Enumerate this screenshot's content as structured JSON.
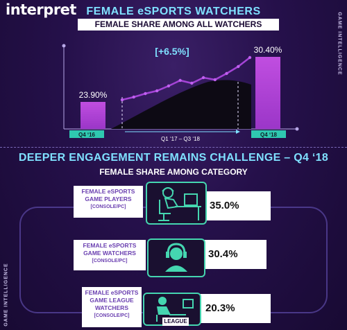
{
  "brand": "interpret",
  "side_label": "GAME INTELLIGENCE",
  "header": {
    "title": "FEMALE eSPORTS WATCHERS",
    "subtitle": "FEMALE SHARE AMONG ALL WATCHERS"
  },
  "section2": {
    "title": "DEEPER ENGAGEMENT REMAINS CHALLENGE – Q4 ‘18",
    "subtitle": "FEMALE SHARE AMONG CATEGORY"
  },
  "chart_data": [
    {
      "type": "bar",
      "categories": [
        "Q4 ‘16",
        "Q4 ‘18"
      ],
      "values": [
        23.9,
        30.4
      ],
      "data_labels": [
        "23.90%",
        "30.40%"
      ],
      "range_label": "Q1 ‘17 – Q3 ‘18",
      "annotation": "[+6.5%]",
      "trend_line": [
        24.2,
        24.6,
        25.1,
        25.5,
        26.2,
        27.0,
        26.6,
        27.4,
        27.1,
        28.0,
        29.0,
        30.3
      ],
      "ylim": [
        20,
        32
      ]
    },
    {
      "type": "bar",
      "orientation": "horizontal",
      "categories": [
        {
          "line1": "FEMALE eSPORTS",
          "line2": "GAME PLAYERS",
          "line3": "[CONSOLE/PC]"
        },
        {
          "line1": "FEMALE eSPORTS",
          "line2": "GAME WATCHERS",
          "line3": "[CONSOLE/PC]"
        },
        {
          "line1": "FEMALE eSPORTS",
          "line2": "GAME LEAGUE",
          "line3": "WATCHERS",
          "line4": "[CONSOLE/PC]"
        }
      ],
      "values": [
        35.0,
        30.4,
        20.3
      ],
      "data_labels": [
        "35.0%",
        "30.4%",
        "20.3%"
      ],
      "icons": [
        "gamer-at-desk-icon",
        "headset-viewer-icon",
        "league-screen-icon"
      ],
      "icon_caption": "LEAGUE"
    }
  ]
}
